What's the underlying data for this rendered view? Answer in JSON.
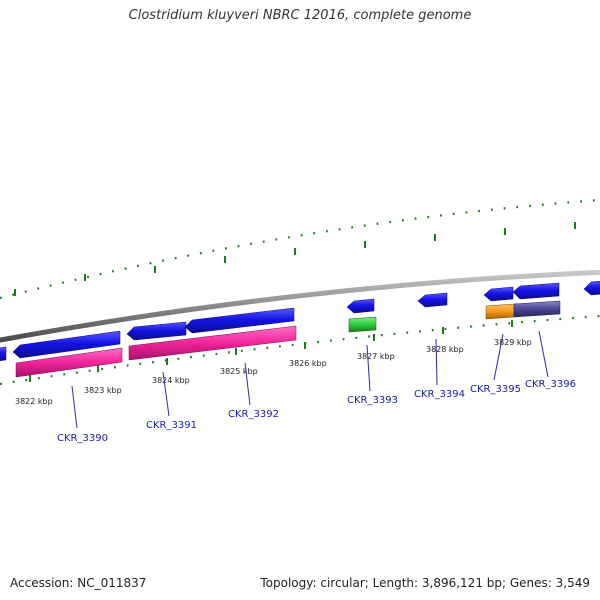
{
  "title": "Clostridium kluyveri NBRC 12016, complete genome",
  "accession": "Accession: NC_011837",
  "topology": "Topology: circular; Length: 3,896,121 bp; Genes: 3,549",
  "colors": {
    "backbone": "#8a8a8a",
    "cds_blue": "#1414e6",
    "pink": "#f0249a",
    "green": "#2ecc40",
    "orange": "#f59a1c",
    "slate": "#4a4690",
    "tick": "#1f7a1f",
    "label": "#1a1aa8"
  },
  "ruler": {
    "kbp_labels": [
      "3822 kbp",
      "3823 kbp",
      "3824 kbp",
      "3825 kbp",
      "3826 kbp",
      "3827 kbp",
      "3828 kbp",
      "3829 kbp"
    ]
  },
  "genes": [
    {
      "id": "CKR_3390",
      "label": "CKR_3390"
    },
    {
      "id": "CKR_3391",
      "label": "CKR_3391"
    },
    {
      "id": "CKR_3392",
      "label": "CKR_3392"
    },
    {
      "id": "CKR_3393",
      "label": "CKR_3393"
    },
    {
      "id": "CKR_3394",
      "label": "CKR_3394"
    },
    {
      "id": "CKR_3395",
      "label": "CKR_3395"
    },
    {
      "id": "CKR_3396",
      "label": "CKR_3396"
    }
  ]
}
